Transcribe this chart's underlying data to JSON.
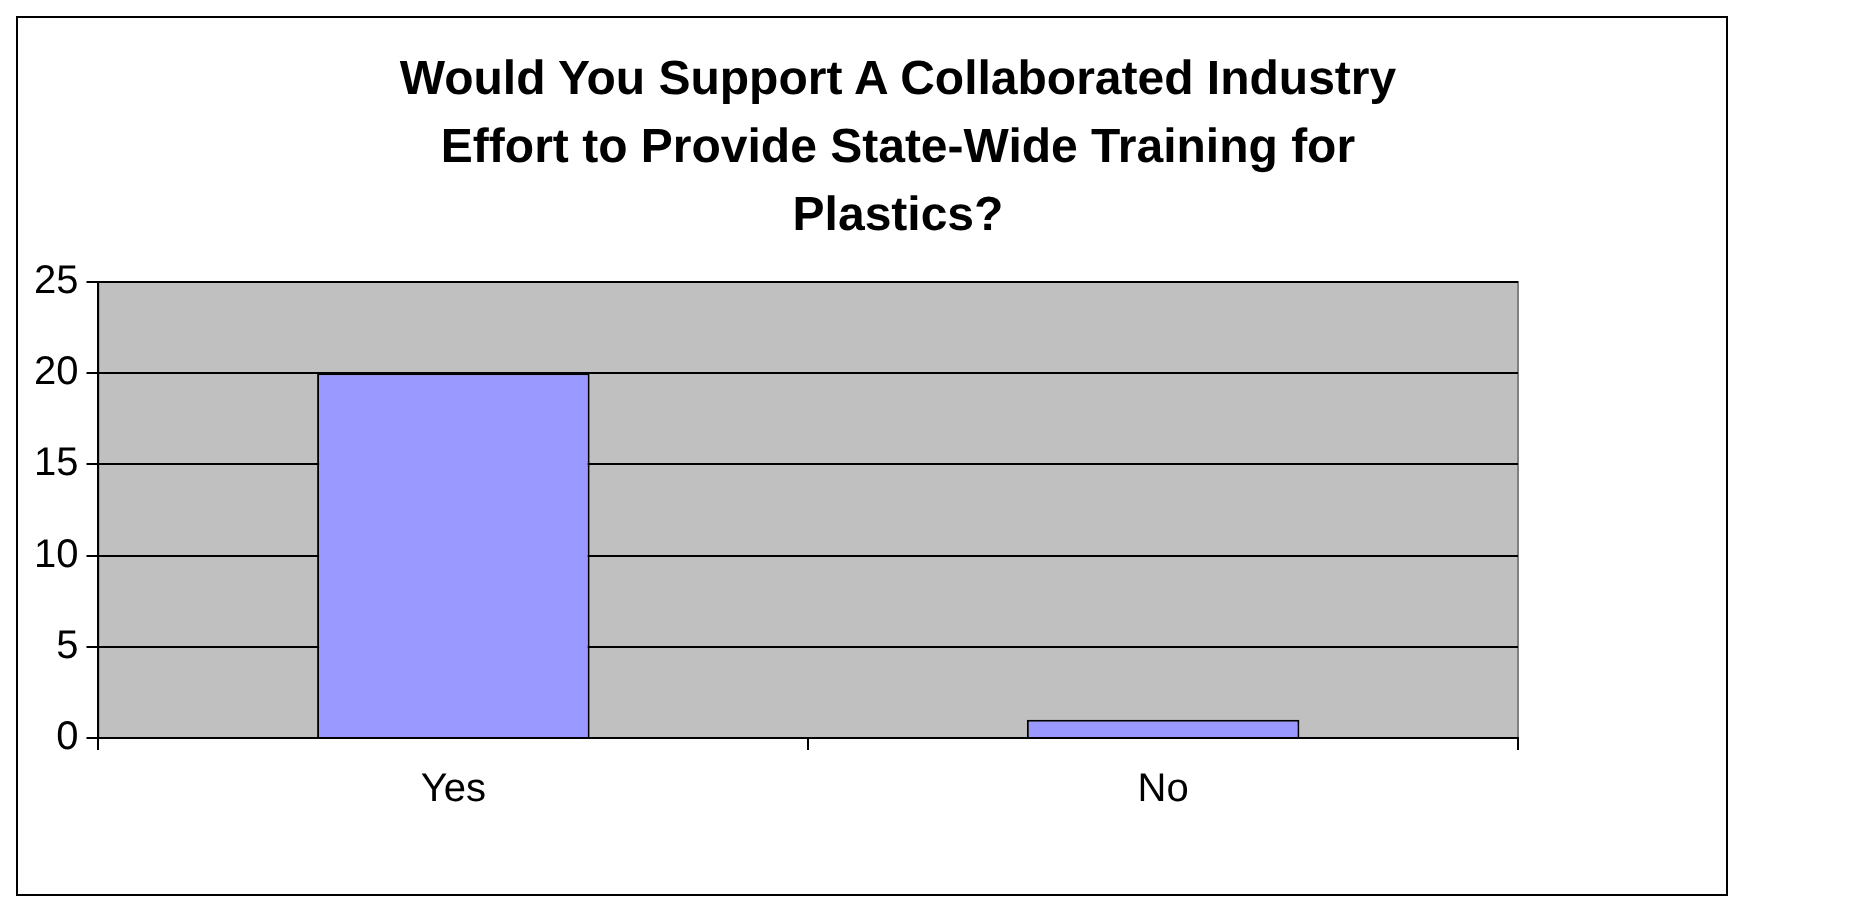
{
  "chart_data": {
    "type": "bar",
    "title": "Would You Support A Collaborated Industry Effort to Provide State-Wide Training for Plastics?",
    "categories": [
      "Yes",
      "No"
    ],
    "values": [
      20,
      1
    ],
    "color": "#9999ff",
    "ylim": [
      0,
      25
    ],
    "yticks": [
      0,
      5,
      10,
      15,
      20,
      25
    ],
    "grid": "y",
    "legend": false
  }
}
